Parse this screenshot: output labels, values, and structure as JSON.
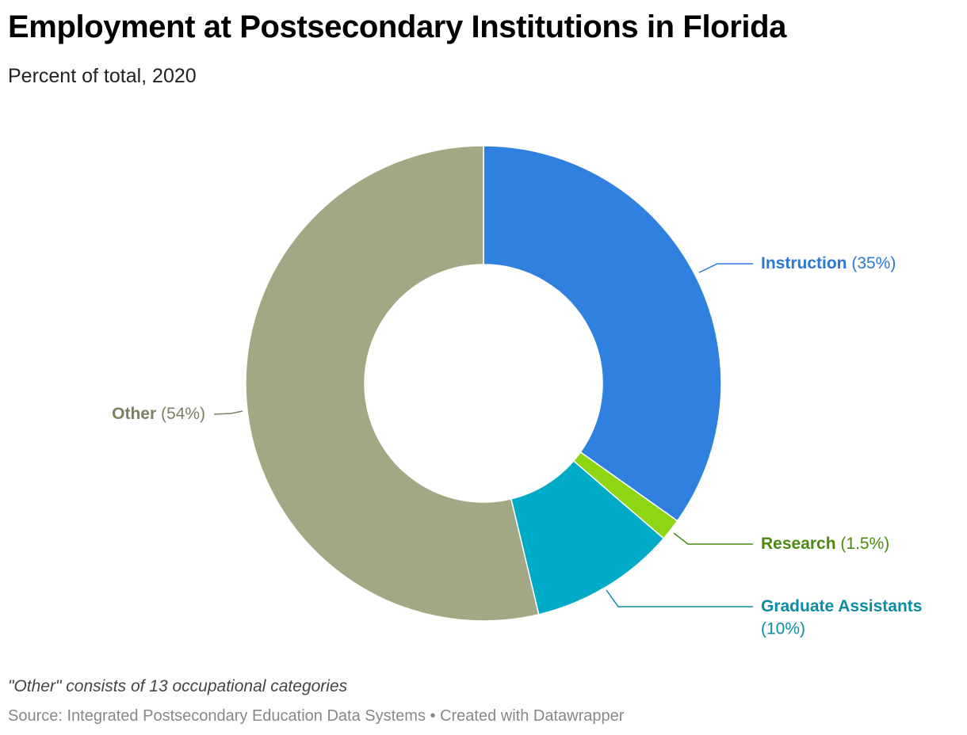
{
  "header": {
    "title": "Employment at Postsecondary Institutions in Florida",
    "subtitle": "Percent of total, 2020"
  },
  "chart_data": {
    "type": "pie",
    "title": "Employment at Postsecondary Institutions in Florida",
    "subtitle": "Percent of total, 2020",
    "variant": "donut",
    "unit": "%",
    "slices": [
      {
        "label": "Instruction",
        "value": 35,
        "display": "(35%)",
        "color": "#3080e0",
        "label_color": "#2a78d6"
      },
      {
        "label": "Research",
        "value": 1.5,
        "display": "(1.5%)",
        "color": "#8ed613",
        "label_color": "#4a8a10"
      },
      {
        "label": "Graduate Assistants",
        "value": 10,
        "display": "(10%)",
        "color": "#00abc7",
        "label_color": "#0a8da3"
      },
      {
        "label": "Other",
        "value": 54,
        "display": "(54%)",
        "color": "#a2a883",
        "label_color": "#7b8060"
      }
    ]
  },
  "footer": {
    "note": "\"Other\" consists of 13 occupational categories",
    "source": "Source: Integrated Postsecondary Education Data Systems • Created with Datawrapper"
  }
}
